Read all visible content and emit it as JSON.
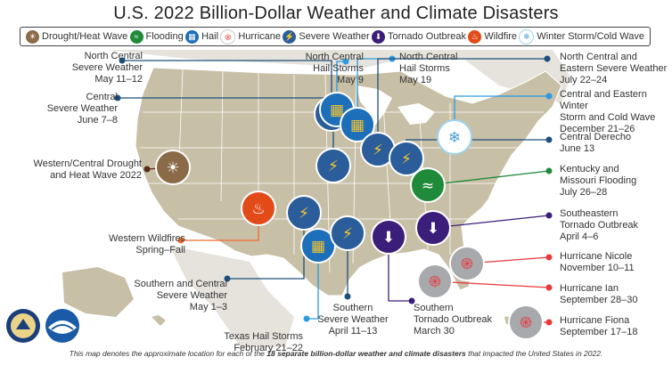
{
  "title": "U.S. 2022 Billion-Dollar Weather and Climate Disasters",
  "legend": [
    {
      "label": "Drought/Heat Wave",
      "color": "#8b6a48",
      "icon": "drought-icon"
    },
    {
      "label": "Flooding",
      "color": "#1f8a3a",
      "icon": "flooding-icon"
    },
    {
      "label": "Hail",
      "color": "#1c6fb8",
      "icon": "hail-icon"
    },
    {
      "label": "Hurricane",
      "color": "#e14e4e",
      "icon": "hurricane-icon"
    },
    {
      "label": "Severe Weather",
      "color": "#2a5d9a",
      "icon": "severe-weather-icon"
    },
    {
      "label": "Tornado Outbreak",
      "color": "#3b1e7a",
      "icon": "tornado-icon"
    },
    {
      "label": "Wildfire",
      "color": "#e24a18",
      "icon": "wildfire-icon"
    },
    {
      "label": "Winter Storm/Cold Wave",
      "color": "#9ed4f0",
      "icon": "winter-storm-icon"
    }
  ],
  "events": [
    {
      "label": "North Central\nSevere Weather\nMay 11–12",
      "type": "Severe Weather",
      "dot_color": "#1d4f7c"
    },
    {
      "label": "Central\nSevere Weather\nJune 7–8",
      "type": "Severe Weather",
      "dot_color": "#1d4f7c"
    },
    {
      "label": "Western/Central Drought\nand Heat Wave 2022",
      "type": "Drought/Heat Wave",
      "dot_color": "#5a2a1a"
    },
    {
      "label": "Western Wildfires\nSpring–Fall",
      "type": "Wildfire",
      "dot_color": "#f26a2b"
    },
    {
      "label": "Southern and Central\nSevere Weather\nMay 1–3",
      "type": "Severe Weather",
      "dot_color": "#1d4f7c"
    },
    {
      "label": "Texas Hail Storms\nFebruary 21–22",
      "type": "Hail",
      "dot_color": "#2b9ae0"
    },
    {
      "label": "Southern\nSevere Weather\nApril 11–13",
      "type": "Severe Weather",
      "dot_color": "#1d4f7c"
    },
    {
      "label": "Southern\nTornado Outbreak\nMarch 30",
      "type": "Tornado Outbreak",
      "dot_color": "#3b1e7a"
    },
    {
      "label": "North Central\nHail Storms\nMay 9",
      "type": "Hail",
      "dot_color": "#2b9ae0"
    },
    {
      "label": "North Central\nHail Storms\nMay 19",
      "type": "Hail",
      "dot_color": "#2b9ae0"
    },
    {
      "label": "North Central and\nEastern Severe Weather\nJuly 22–24",
      "type": "Severe Weather",
      "dot_color": "#1d4f7c"
    },
    {
      "label": "Central and Eastern Winter\nStorm and Cold Wave\nDecember 21–26",
      "type": "Winter Storm/Cold Wave",
      "dot_color": "#2b9ae0"
    },
    {
      "label": "Central Derecho\nJune 13",
      "type": "Severe Weather",
      "dot_color": "#1d4f7c"
    },
    {
      "label": "Kentucky and\nMissouri Flooding\nJuly 26–28",
      "type": "Flooding",
      "dot_color": "#1f8a3a"
    },
    {
      "label": "Southeastern\nTornado Outbreak\nApril 4–6",
      "type": "Tornado Outbreak",
      "dot_color": "#3b1e7a"
    },
    {
      "label": "Hurricane Nicole\nNovember 10–11",
      "type": "Hurricane",
      "dot_color": "#e8393c"
    },
    {
      "label": "Hurricane Ian\nSeptember 28–30",
      "type": "Hurricane",
      "dot_color": "#e8393c"
    },
    {
      "label": "Hurricane Fiona\nSeptember 17–18",
      "type": "Hurricane",
      "dot_color": "#e8393c"
    }
  ],
  "footer": {
    "prefix": "This map denotes the approximate location for each of the ",
    "bold": "18 separate billion-dollar weather and climate disasters",
    "suffix": " that impacted the United States in 2022."
  },
  "colors": {
    "land": "#c7bfa6",
    "land_stroke": "#ffffff",
    "neighbors": "#e6e3dc",
    "severe_circle": "#2a5d9a",
    "hail_circle": "#1c6fb8",
    "tornado_circle": "#3b1e7a",
    "hurricane_circle": "#a7a9ac",
    "flood_circle": "#1f8a3a",
    "winter_circle": "#ffffff",
    "fire_circle": "#e24a18",
    "drought_circle": "#8b6a48"
  }
}
